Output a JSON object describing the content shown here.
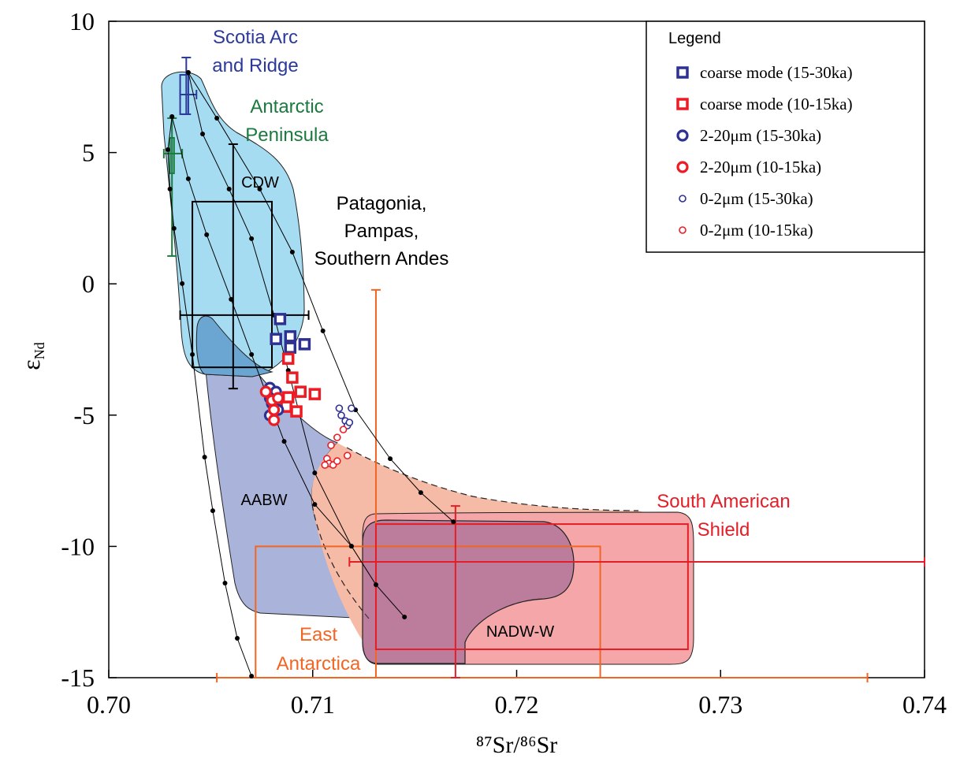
{
  "chart_data": {
    "type": "scatter",
    "xlabel": "⁸⁷Sr/⁸⁶Sr",
    "ylabel": {
      "text": "ε",
      "subscript": "Nd"
    },
    "xlim": [
      0.7,
      0.74
    ],
    "ylim": [
      -15,
      10
    ],
    "xticks": [
      {
        "value": 0.7,
        "label": "0.70"
      },
      0.71,
      0.72,
      0.73,
      0.74
    ],
    "yticks": [
      -15,
      -10,
      -5,
      0,
      5,
      10
    ],
    "legend": {
      "title": "Legend",
      "position": "upper right"
    },
    "series": [
      {
        "name": "coarse mode (15-30ka)",
        "color": "#2e3192",
        "marker": "square",
        "x": [
          0.7084,
          0.7082,
          0.7089,
          0.7089,
          0.7096
        ],
        "y": [
          -1.34,
          -2.1,
          -2.0,
          -2.43,
          -2.3
        ]
      },
      {
        "name": "coarse mode (10-15ka)",
        "color": "#ed1c24",
        "marker": "square",
        "x": [
          0.7088,
          0.709,
          0.7094,
          0.7088,
          0.7101,
          0.7092,
          0.7087
        ],
        "y": [
          -2.85,
          -3.57,
          -4.11,
          -4.32,
          -4.2,
          -4.86,
          -4.68
        ]
      },
      {
        "name": "2-20μm (15-30ka)",
        "color": "#2e3192",
        "marker": "circle",
        "x": [
          0.7079,
          0.7082,
          0.7079,
          0.708,
          0.7079,
          0.7083
        ],
        "y": [
          -3.96,
          -4.11,
          -4.35,
          -4.56,
          -5.01,
          -4.8
        ]
      },
      {
        "name": "2-20μm (10-15ka)",
        "color": "#ed1c24",
        "marker": "circle",
        "x": [
          0.7077,
          0.708,
          0.7081,
          0.7081,
          0.7083
        ],
        "y": [
          -4.11,
          -4.44,
          -4.8,
          -5.19,
          -4.35
        ]
      },
      {
        "name": "0-2μm (15-30ka)",
        "color": "#2e3192",
        "marker": "small-circle",
        "x": [
          0.7113,
          0.7114,
          0.7116,
          0.7117,
          0.7119,
          0.7118
        ],
        "y": [
          -4.74,
          -5.01,
          -5.22,
          -5.4,
          -4.74,
          -5.28
        ]
      },
      {
        "name": "0-2μm (10-15ka)",
        "color": "#ed1c24",
        "marker": "small-circle",
        "x": [
          0.7112,
          0.7109,
          0.7115,
          0.7117,
          0.7107,
          0.7108,
          0.711,
          0.7112,
          0.7106
        ],
        "y": [
          -5.85,
          -6.15,
          -5.55,
          -6.54,
          -6.66,
          -6.84,
          -6.9,
          -6.75,
          -6.9
        ]
      }
    ],
    "sources": [
      {
        "label": [
          "Scotia Arc",
          "and Ridge"
        ],
        "color": "#2b3a9a",
        "box": {
          "x": [
            0.7035,
            0.7039
          ],
          "y": [
            7.96,
            6.46
          ]
        },
        "vline": {
          "x": 0.7038,
          "y": [
            8.62,
            6.46
          ]
        },
        "hline": {
          "y": 7.21,
          "x": [
            0.7035,
            0.7043
          ]
        }
      },
      {
        "label": [
          "Antarctic",
          "Peninsula"
        ],
        "color": "#1b7a3e",
        "box": {
          "x": [
            0.703,
            0.7032
          ],
          "y": [
            5.56,
            4.21
          ]
        },
        "vline": {
          "x": 0.7031,
          "y": [
            6.31,
            1.06
          ]
        },
        "hline": {
          "y": 4.96,
          "x": [
            0.7027,
            0.7036
          ]
        }
      },
      {
        "label": [
          "Patagonia,",
          "Pampas,",
          "Southern Andes"
        ],
        "color": "#000000",
        "box": {
          "x": [
            0.7041,
            0.708
          ],
          "y": [
            3.13,
            -3.18
          ]
        },
        "vline": {
          "x": 0.7061,
          "y": [
            5.32,
            -3.99
          ]
        },
        "hline": {
          "y": -1.19,
          "x": [
            0.7035,
            0.7098
          ]
        }
      },
      {
        "label": [
          "East",
          "Antarctica"
        ],
        "color": "#f26522",
        "box": {
          "x": [
            0.7072,
            0.7241
          ],
          "y": [
            -10,
            -15
          ]
        },
        "vline": {
          "x": 0.7131,
          "y": [
            -0.23,
            -15
          ]
        },
        "hline": {
          "y": -15,
          "x": [
            0.7053,
            0.7372
          ]
        }
      },
      {
        "label": [
          "South American",
          "Shield"
        ],
        "color": "#e31e26",
        "box": {
          "x": [
            0.7131,
            0.7284
          ],
          "y": [
            -9.15,
            -13.92
          ]
        },
        "vline": {
          "x": 0.717,
          "y": [
            -8.46,
            -15
          ]
        },
        "hline": {
          "y": -10.59,
          "x": [
            0.7118,
            0.74
          ]
        }
      }
    ],
    "region_labels": [
      "CDW",
      "AABW",
      "NADW-W"
    ],
    "mixing_lines": [
      {
        "x": [
          0.7031,
          0.7029,
          0.703,
          0.7032,
          0.7036,
          0.7041,
          0.7047,
          0.7051,
          0.7057,
          0.7063,
          0.707
        ],
        "y": [
          6.37,
          5.11,
          3.61,
          2.11,
          0.01,
          -2.69,
          -6.6,
          -8.64,
          -11.4,
          -13.5,
          -14.94
        ]
      },
      {
        "x": [
          0.7039,
          0.7053,
          0.7074,
          0.709,
          0.7105,
          0.7121,
          0.7138,
          0.7153,
          0.7169
        ],
        "y": [
          8.05,
          6.31,
          3.61,
          1.21,
          -1.79,
          -4.8,
          -6.66,
          -7.95,
          -9.06
        ]
      },
      {
        "x": [
          0.7039,
          0.7046,
          0.7059,
          0.707,
          0.7081,
          0.7088,
          0.7101,
          0.7119,
          0.7131,
          0.7145
        ],
        "y": [
          8.05,
          5.71,
          3.61,
          1.72,
          -1.19,
          -3.3,
          -7.2,
          -9.99,
          -11.46,
          -12.69
        ]
      },
      {
        "x": [
          0.7031,
          0.7039,
          0.7048,
          0.706,
          0.707,
          0.7086,
          0.7101,
          0.7119
        ],
        "y": [
          6.37,
          4.0,
          1.87,
          -0.59,
          -2.69,
          -6.0,
          -8.4,
          -9.99
        ]
      }
    ]
  }
}
